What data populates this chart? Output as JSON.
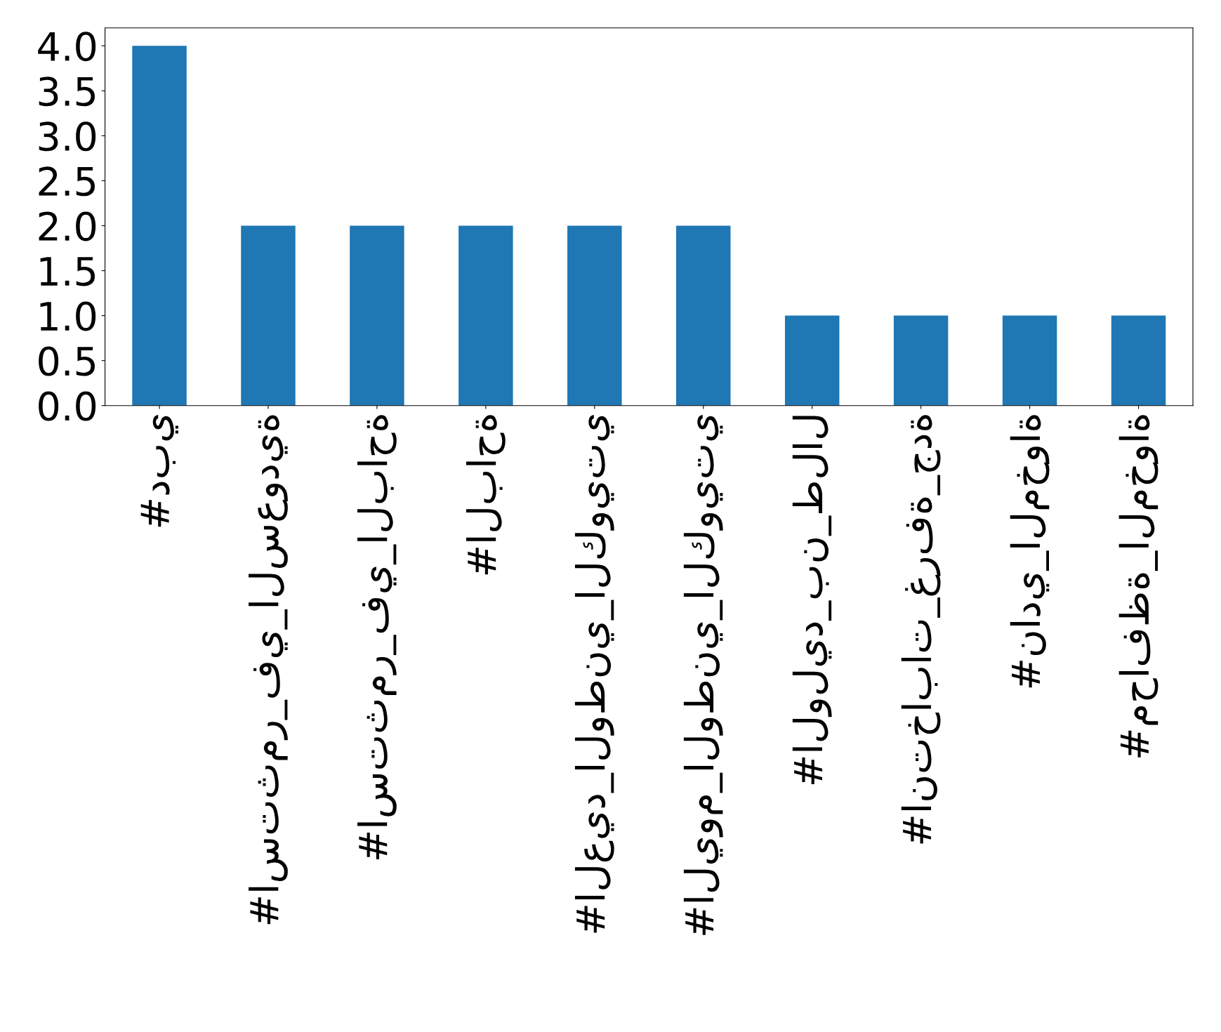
{
  "chart_data": {
    "type": "bar",
    "categories": [
      "#دبي",
      "#استثمر_في_السعودية",
      "#استثمر_في_الباحة",
      "#الباحة",
      "#العيد_الوطني_الكويتي",
      "#اليوم_الوطني_الكويتي",
      "#الوليد_بن_طلال",
      "#انتخابات_غرفة_جدة",
      "#نادي_المخواة",
      "#محافظة_المخواة"
    ],
    "values": [
      4,
      2,
      2,
      2,
      2,
      2,
      1,
      1,
      1,
      1
    ],
    "color": "#1f77b4",
    "ylim": [
      0,
      4.2
    ],
    "yticks": [
      {
        "value": 0,
        "label": "0.0"
      },
      {
        "value": 0.5,
        "label": "0.5"
      },
      {
        "value": 1,
        "label": "1.0"
      },
      {
        "value": 1.5,
        "label": "1.5"
      },
      {
        "value": 2,
        "label": "2.0"
      },
      {
        "value": 2.5,
        "label": "2.5"
      },
      {
        "value": 3,
        "label": "3.0"
      },
      {
        "value": 3.5,
        "label": "3.5"
      },
      {
        "value": 4,
        "label": "4.0"
      }
    ],
    "grid": false
  }
}
